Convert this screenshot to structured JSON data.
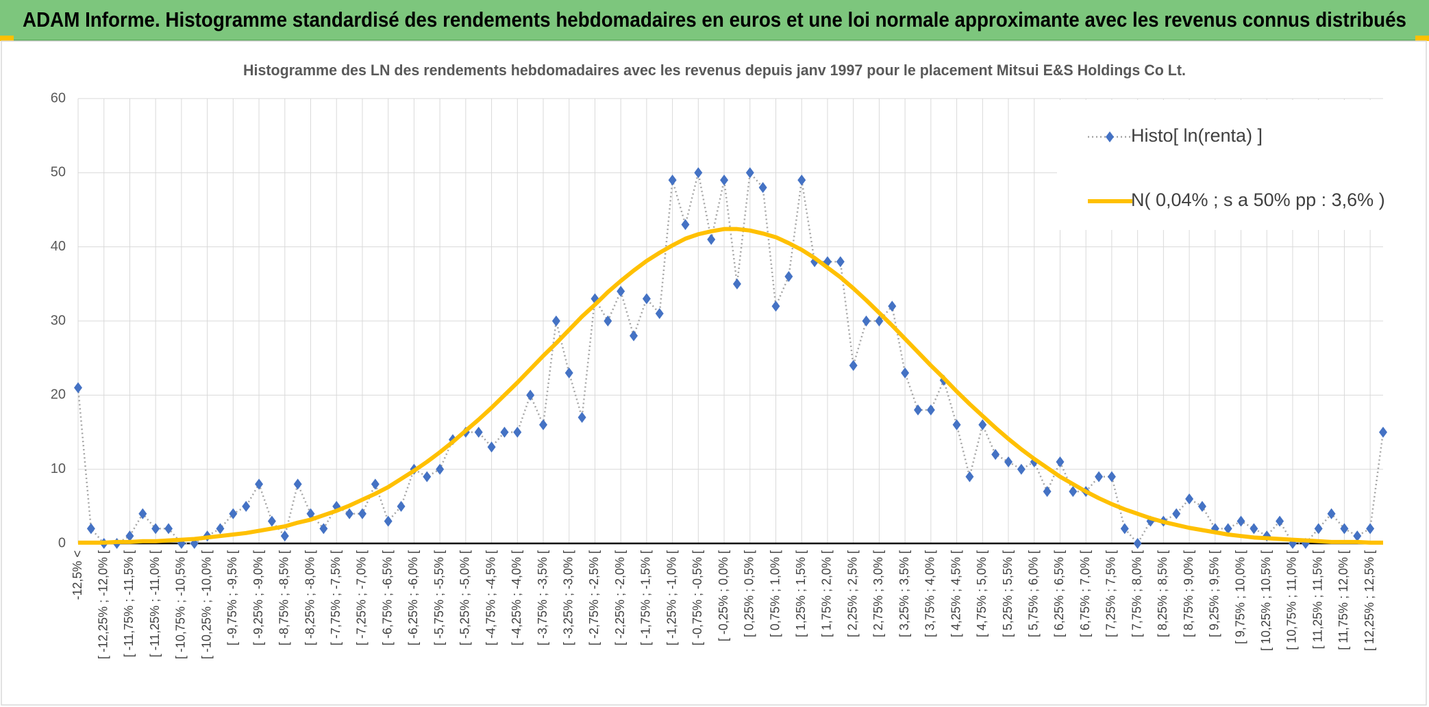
{
  "header": {
    "title": "ADAM Informe. Histogramme standardisé des rendements hebdomadaires en euros et une loi normale approximante avec les revenus connus distribués"
  },
  "chart_data": {
    "type": "line",
    "title": "Histogramme des LN des rendements hebdomadaires avec les revenus depuis janv 1997 pour le placement Mitsui E&S Holdings Co Lt.",
    "categories": [
      "-12,5% <",
      null,
      "[ -12,25% ; -12,0% [",
      null,
      "[ -11,75% ; -11,5% [",
      null,
      "[ -11,25% ; -11,0% [",
      null,
      "[ -10,75% ; -10,5% [",
      null,
      "[ -10,25% ; -10,0% [",
      null,
      "[ -9,75% ; -9,5% [",
      null,
      "[ -9,25% ; -9,0% [",
      null,
      "[ -8,75% ; -8,5% [",
      null,
      "[ -8,25% ; -8,0% [",
      null,
      "[ -7,75% ; -7,5% [",
      null,
      "[ -7,25% ; -7,0% [",
      null,
      "[ -6,75% ; -6,5% [",
      null,
      "[ -6,25% ; -6,0% [",
      null,
      "[ -5,75% ; -5,5% [",
      null,
      "[ -5,25% ; -5,0% [",
      null,
      "[ -4,75% ; -4,5% [",
      null,
      "[ -4,25% ; -4,0% [",
      null,
      "[ -3,75% ; -3,5% [",
      null,
      "[ -3,25% ; -3,0% [",
      null,
      "[ -2,75% ; -2,5% [",
      null,
      "[ -2,25% ; -2,0% [",
      null,
      "[ -1,75% ; -1,5% [",
      null,
      "[ -1,25% ; -1,0% [",
      null,
      "[ -0,75% ; -0,5% [",
      null,
      "[ -0,25% ; 0,0% [",
      null,
      "[ 0,25% ; 0,5% [",
      null,
      "[ 0,75% ; 1,0% [",
      null,
      "[ 1,25% ; 1,5% [",
      null,
      "[ 1,75% ; 2,0% [",
      null,
      "[ 2,25% ; 2,5% [",
      null,
      "[ 2,75% ; 3,0% [",
      null,
      "[ 3,25% ; 3,5% [",
      null,
      "[ 3,75% ; 4,0% [",
      null,
      "[ 4,25% ; 4,5% [",
      null,
      "[ 4,75% ; 5,0% [",
      null,
      "[ 5,25% ; 5,5% [",
      null,
      "[ 5,75% ; 6,0% [",
      null,
      "[ 6,25% ; 6,5% [",
      null,
      "[ 6,75% ; 7,0% [",
      null,
      "[ 7,25% ; 7,5% [",
      null,
      "[ 7,75% ; 8,0% [",
      null,
      "[ 8,25% ; 8,5% [",
      null,
      "[ 8,75% ; 9,0% [",
      null,
      "[ 9,25% ; 9,5% [",
      null,
      "[ 9,75% ; 10,0% [",
      null,
      "[ 10,25% ; 10,5% [",
      null,
      "[ 10,75% ; 11,0% [",
      null,
      "[ 11,25% ; 11,5% [",
      null,
      "[ 11,75% ; 12,0% [",
      null,
      "[ 12,25% ; 12,5% [",
      null
    ],
    "series": [
      {
        "name": "Histo[ ln(renta) ]",
        "color": "#4472c4",
        "line_color": "#a5a5a5",
        "values": [
          21,
          2,
          0,
          0,
          1,
          4,
          2,
          2,
          0,
          0,
          1,
          2,
          4,
          5,
          8,
          3,
          1,
          8,
          4,
          2,
          5,
          4,
          4,
          8,
          3,
          5,
          10,
          9,
          10,
          14,
          15,
          15,
          13,
          15,
          15,
          20,
          16,
          30,
          23,
          17,
          33,
          30,
          34,
          28,
          33,
          31,
          49,
          43,
          50,
          41,
          49,
          35,
          50,
          48,
          32,
          36,
          49,
          38,
          38,
          38,
          24,
          30,
          30,
          32,
          23,
          18,
          18,
          22,
          16,
          9,
          16,
          12,
          11,
          10,
          11,
          7,
          11,
          7,
          7,
          9,
          9,
          2,
          0,
          3,
          3,
          4,
          6,
          5,
          2,
          2,
          3,
          2,
          1,
          3,
          0,
          0,
          2,
          4,
          2,
          1,
          2,
          15
        ]
      },
      {
        "name": "N( 0,04% ; s a 50% pp : 3,6% )",
        "color": "#ffc000",
        "values": [
          0.1,
          0.1,
          0.1,
          0.2,
          0.2,
          0.3,
          0.3,
          0.4,
          0.5,
          0.6,
          0.8,
          1.0,
          1.2,
          1.4,
          1.7,
          2.0,
          2.3,
          2.8,
          3.2,
          3.8,
          4.4,
          5.1,
          5.9,
          6.7,
          7.6,
          8.7,
          9.8,
          11.0,
          12.3,
          13.7,
          15.2,
          16.7,
          18.3,
          20.0,
          21.7,
          23.5,
          25.3,
          27.0,
          28.8,
          30.6,
          32.2,
          33.9,
          35.4,
          36.8,
          38.1,
          39.2,
          40.2,
          41.1,
          41.7,
          42.1,
          42.4,
          42.4,
          42.2,
          41.8,
          41.3,
          40.5,
          39.6,
          38.5,
          37.2,
          35.9,
          34.4,
          32.8,
          31.1,
          29.4,
          27.6,
          25.8,
          24.0,
          22.3,
          20.5,
          18.8,
          17.2,
          15.6,
          14.1,
          12.7,
          11.4,
          10.2,
          9.0,
          8.0,
          7.0,
          6.1,
          5.3,
          4.6,
          4.0,
          3.4,
          2.9,
          2.5,
          2.1,
          1.8,
          1.5,
          1.2,
          1.0,
          0.8,
          0.7,
          0.6,
          0.5,
          0.4,
          0.3,
          0.2,
          0.2,
          0.2,
          0.1,
          0.1
        ]
      }
    ],
    "ylim": [
      0,
      60
    ],
    "yticks": [
      0,
      10,
      20,
      30,
      40,
      50,
      60
    ],
    "grid": true,
    "legend": "upper right"
  }
}
